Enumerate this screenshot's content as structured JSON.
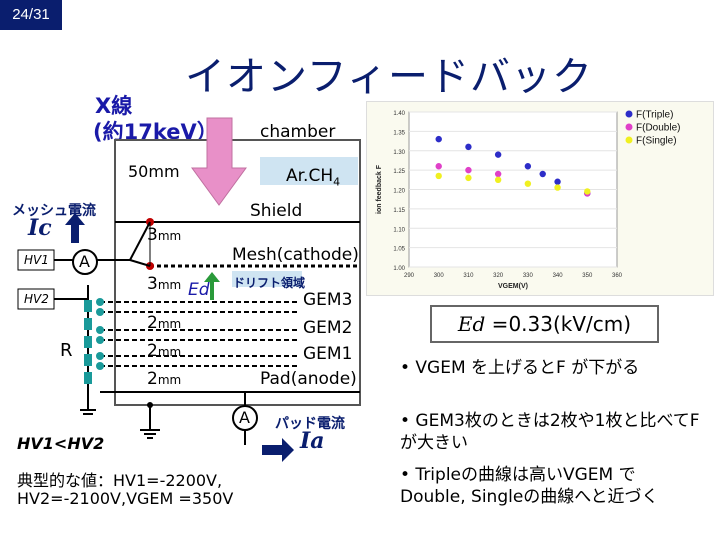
{
  "page_number": "24/31",
  "title": "イオンフィードバック",
  "xray": {
    "line1": "X線",
    "line2": "(約17keV）"
  },
  "labels": {
    "chamber": "chamber",
    "dist_50": "50mm",
    "gas": "Ar.CH",
    "gas_sub": "4",
    "shield": "Shield",
    "mesh_current": "メッシュ電流",
    "ic": "Ic",
    "hv1": "HV1",
    "hv2": "HV2",
    "dist_3a": "3",
    "dist_3b": "3",
    "unit_mm": "mm",
    "mesh": "Mesh(cathode)",
    "ed": "Ed",
    "drift": "ドリフト領域",
    "gem3": "GEM3",
    "dist_2": "2",
    "gem2": "GEM2",
    "gem1": "GEM1",
    "pad": "Pad(anode)",
    "resistor": "R",
    "ammeter": "A",
    "pad_current": "パッド電流",
    "ia": "Ia",
    "hv_relation": "HV1<HV2",
    "typical_line1": "典型的な値：HV1=-2200V,",
    "typical_line2": "HV2=-2100V,VGEM =350V"
  },
  "ed_box": {
    "symbol": "Ed",
    "value": " =0.33(kV/cm)"
  },
  "bullets": [
    "•  VGEM を上げるとF が下がる",
    "•  GEM3枚のときは2枚や1枚と比べてF が大きい",
    "•  Tripleの曲線は高いVGEM でDouble, Singleの曲線へと近づく"
  ],
  "colors": {
    "navy": "#0a1e6e",
    "triple": "#2d2dc8",
    "double": "#e040c8",
    "single": "#f0f020",
    "arrow": "#e890c8"
  },
  "chart_data": {
    "type": "scatter",
    "xlabel": "VGEM(V)",
    "ylabel": "ion feedback F",
    "xlim": [
      290,
      360
    ],
    "ylim": [
      1.0,
      1.4
    ],
    "xticks": [
      "290",
      "300",
      "310",
      "320",
      "330",
      "340",
      "350",
      "360"
    ],
    "yticks": [
      "1.00",
      "1.05",
      "1.10",
      "1.15",
      "1.20",
      "1.25",
      "1.30",
      "1.35",
      "1.40"
    ],
    "legend_position": "top-right",
    "series": [
      {
        "name": "F(Triple)",
        "color": "#2d2dc8",
        "x": [
          300,
          310,
          320,
          330,
          335,
          340,
          350
        ],
        "y": [
          1.33,
          1.31,
          1.29,
          1.26,
          1.24,
          1.22,
          1.19
        ]
      },
      {
        "name": "F(Double)",
        "color": "#e040c8",
        "x": [
          300,
          310,
          320,
          350
        ],
        "y": [
          1.26,
          1.25,
          1.24,
          1.19
        ]
      },
      {
        "name": "F(Single)",
        "color": "#f0f020",
        "x": [
          300,
          310,
          320,
          330,
          340,
          350
        ],
        "y": [
          1.235,
          1.23,
          1.225,
          1.215,
          1.205,
          1.195
        ]
      }
    ]
  }
}
